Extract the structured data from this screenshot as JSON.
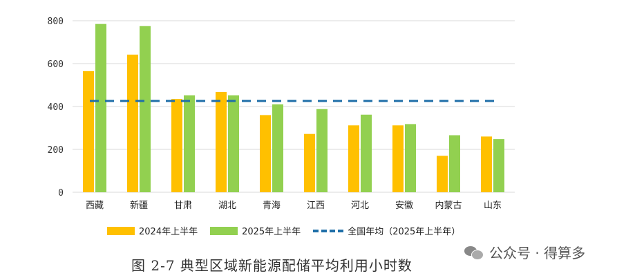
{
  "chart_data": {
    "type": "bar",
    "categories": [
      "西藏",
      "新疆",
      "甘肃",
      "湖北",
      "青海",
      "江西",
      "河北",
      "安徽",
      "内蒙古",
      "山东"
    ],
    "series": [
      {
        "name": "2024年上半年",
        "values": [
          565,
          642,
          435,
          468,
          360,
          272,
          312,
          312,
          170,
          260
        ],
        "color": "#FFC000"
      },
      {
        "name": "2025年上半年",
        "values": [
          785,
          775,
          452,
          452,
          410,
          388,
          362,
          318,
          266,
          248
        ],
        "color": "#92D050"
      }
    ],
    "reference_line": {
      "name": "全国年均（2025年上半年）",
      "value": 426,
      "color": "#1F6FA8",
      "style": "dashed"
    },
    "ylim": [
      0,
      800
    ],
    "yticks": [
      0,
      200,
      400,
      600,
      800
    ],
    "grid": true,
    "legend_position": "bottom",
    "xlabel": "",
    "ylabel": ""
  },
  "caption": "图 2-7  典型区域新能源配储平均利用小时数",
  "watermark": {
    "label": "公众号 · 得算多",
    "icon": "wechat-icon"
  }
}
